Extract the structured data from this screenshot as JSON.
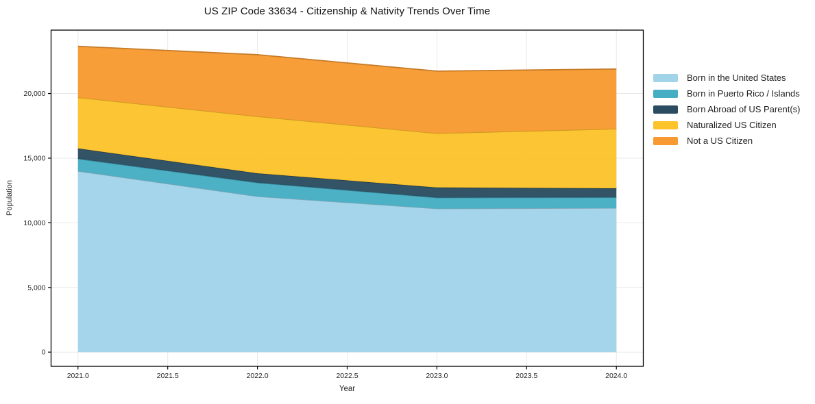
{
  "title": "US ZIP Code 33634 - Citizenship & Nativity Trends Over Time",
  "chart_data": {
    "type": "area",
    "stacked": true,
    "title": "US ZIP Code 33634 - Citizenship & Nativity Trends Over Time",
    "xlabel": "Year",
    "ylabel": "Population",
    "x": [
      2021,
      2022,
      2023,
      2024
    ],
    "series": [
      {
        "name": "Born in the United States",
        "color": "#A1D3E9",
        "values": [
          14000,
          12050,
          11100,
          11150
        ]
      },
      {
        "name": "Born in Puerto Rico / Islands",
        "color": "#46AEC4",
        "values": [
          950,
          1050,
          850,
          820
        ]
      },
      {
        "name": "Born Abroad of US Parent(s)",
        "color": "#2B4C60",
        "values": [
          800,
          730,
          780,
          700
        ]
      },
      {
        "name": "Naturalized US Citizen",
        "color": "#FCC32B",
        "values": [
          3950,
          4400,
          4190,
          4600
        ]
      },
      {
        "name": "Not a US Citizen",
        "color": "#F89A31",
        "values": [
          3950,
          4770,
          4810,
          4620
        ]
      }
    ],
    "totals": [
      23650,
      23000,
      21730,
      21890
    ],
    "xlim": [
      2020.85,
      2024.15
    ],
    "ylim": [
      -1100,
      24900
    ],
    "xticks": {
      "values": [
        2021.0,
        2021.5,
        2022.0,
        2022.5,
        2023.0,
        2023.5,
        2024.0
      ],
      "labels": [
        "2021.0",
        "2021.5",
        "2022.0",
        "2022.5",
        "2023.0",
        "2023.5",
        "2024.0"
      ]
    },
    "yticks": {
      "values": [
        0,
        5000,
        10000,
        15000,
        20000
      ],
      "labels": [
        "0",
        "5,000",
        "10,000",
        "15,000",
        "20,000"
      ]
    },
    "grid": true,
    "grid_color": "#e8e8e8",
    "frame_color": "#000000",
    "legend_position": "right"
  }
}
